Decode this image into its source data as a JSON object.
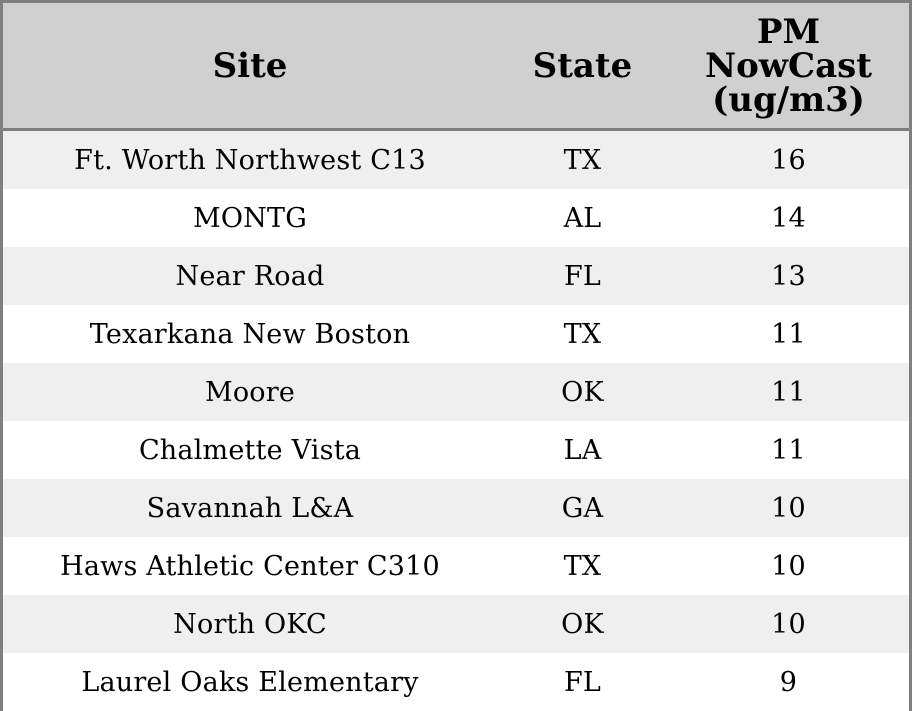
{
  "chart_data": {
    "type": "table",
    "columns": [
      "Site",
      "State",
      "PM NowCast (ug/m3)"
    ],
    "header_lines": {
      "site": [
        "Site"
      ],
      "state": [
        "State"
      ],
      "value": [
        "PM",
        "NowCast",
        "(ug/m3)"
      ]
    },
    "rows": [
      {
        "site": "Ft. Worth Northwest C13",
        "state": "TX",
        "value": "16"
      },
      {
        "site": "MONTG",
        "state": "AL",
        "value": "14"
      },
      {
        "site": "Near Road",
        "state": "FL",
        "value": "13"
      },
      {
        "site": "Texarkana New Boston",
        "state": "TX",
        "value": "11"
      },
      {
        "site": "Moore",
        "state": "OK",
        "value": "11"
      },
      {
        "site": "Chalmette Vista",
        "state": "LA",
        "value": "11"
      },
      {
        "site": "Savannah L&A",
        "state": "GA",
        "value": "10"
      },
      {
        "site": "Haws Athletic Center C310",
        "state": "TX",
        "value": "10"
      },
      {
        "site": "North OKC",
        "state": "OK",
        "value": "10"
      },
      {
        "site": "Laurel Oaks Elementary",
        "state": "FL",
        "value": "9"
      }
    ],
    "colors": {
      "header_background": "#d0d0d0",
      "row_odd": "#efefef",
      "row_even": "#ffffff",
      "border": "#7f7f7f"
    }
  }
}
